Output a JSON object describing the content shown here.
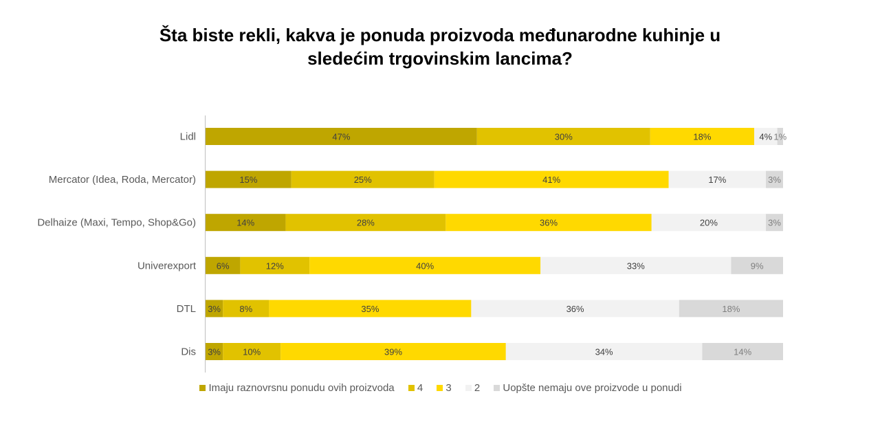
{
  "chart_data": {
    "type": "bar",
    "orientation": "horizontal",
    "stacked": "100%",
    "title_lines": [
      "Šta biste rekli, kakva je ponuda proizvoda međunarodne kuhinje u",
      "sledećim trgovinskim lancima?"
    ],
    "categories": [
      "Lidl",
      "Mercator (Idea, Roda, Mercator)",
      "Delhaize (Maxi, Tempo, Shop&Go)",
      "Univerexport",
      "DTL",
      "Dis"
    ],
    "series": [
      {
        "name": "Imaju raznovrsnu ponudu ovih proizvoda",
        "color": "#BFA600",
        "values": [
          47,
          15,
          14,
          6,
          3,
          3
        ]
      },
      {
        "name": "4",
        "color": "#E1C200",
        "values": [
          30,
          25,
          28,
          12,
          8,
          10
        ]
      },
      {
        "name": "3",
        "color": "#FFD900",
        "values": [
          18,
          41,
          36,
          40,
          35,
          39
        ]
      },
      {
        "name": "2",
        "color": "#F2F2F2",
        "values": [
          4,
          17,
          20,
          33,
          36,
          34
        ]
      },
      {
        "name": "Uopšte nemaju ove proizvode u ponudi",
        "color": "#D9D9D9",
        "values": [
          1,
          3,
          3,
          9,
          18,
          14
        ]
      }
    ],
    "data_label_colors": [
      "#404040",
      "#404040",
      "#404040",
      "#404040",
      "#7F7F7F"
    ],
    "value_suffix": "%",
    "legend_position": "bottom"
  }
}
